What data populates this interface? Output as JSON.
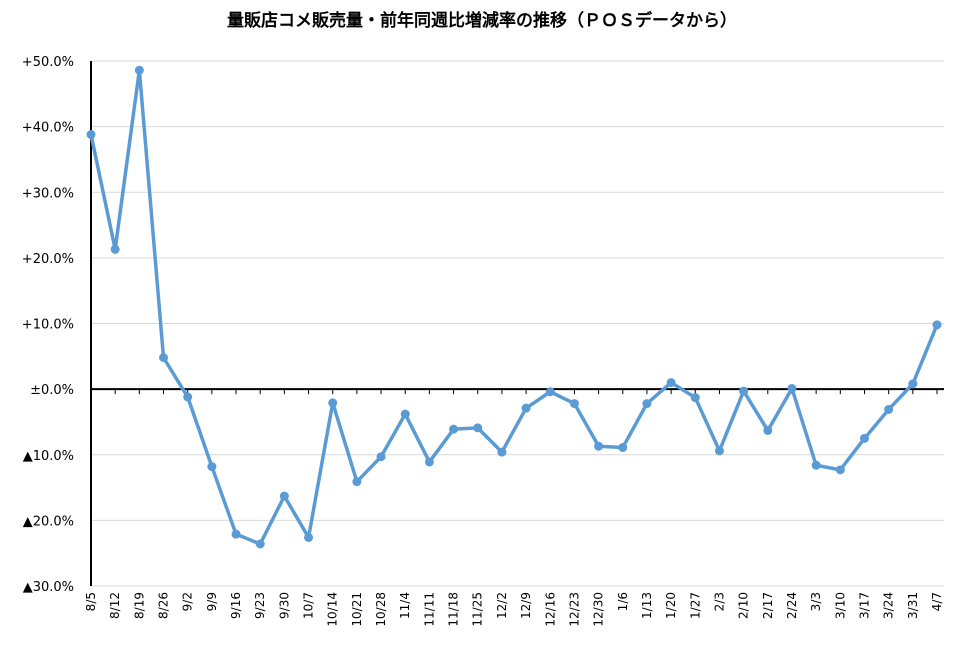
{
  "chart_data": {
    "type": "line",
    "title": "量販店コメ販売量・前年同週比増減率の推移（ＰＯＳデータから）",
    "xlabel": "",
    "ylabel": "",
    "ylim": [
      -30,
      50
    ],
    "yticks": [
      50,
      40,
      30,
      20,
      10,
      0,
      -10,
      -20,
      -30
    ],
    "ytick_labels": [
      "+50.0%",
      "+40.0%",
      "+30.0%",
      "+20.0%",
      "+10.0%",
      "±0.0%",
      "▲10.0%",
      "▲20.0%",
      "▲30.0%"
    ],
    "grid": true,
    "legend": "none",
    "line_color": "#5B9BD5",
    "categories": [
      "8/5",
      "8/12",
      "8/19",
      "8/26",
      "9/2",
      "9/9",
      "9/16",
      "9/23",
      "9/30",
      "10/7",
      "10/14",
      "10/21",
      "10/28",
      "11/4",
      "11/11",
      "11/18",
      "11/25",
      "12/2",
      "12/9",
      "12/16",
      "12/23",
      "12/30",
      "1/6",
      "1/13",
      "1/20",
      "1/27",
      "2/3",
      "2/10",
      "2/17",
      "2/24",
      "3/3",
      "3/10",
      "3/17",
      "3/24",
      "3/31",
      "4/7"
    ],
    "series": [
      {
        "values": [
          38.8,
          21.3,
          48.6,
          4.8,
          -1.2,
          -11.8,
          -22.1,
          -23.6,
          -16.3,
          -22.6,
          -2.1,
          -14.1,
          -10.3,
          -3.8,
          -11.1,
          -6.1,
          -5.9,
          -9.6,
          -2.9,
          -0.4,
          -2.2,
          -8.7,
          -8.9,
          -2.2,
          1.0,
          -1.3,
          -9.4,
          -0.3,
          -6.3,
          0.1,
          -11.6,
          -12.3,
          -7.5,
          -3.1,
          0.8,
          9.8
        ]
      }
    ]
  }
}
